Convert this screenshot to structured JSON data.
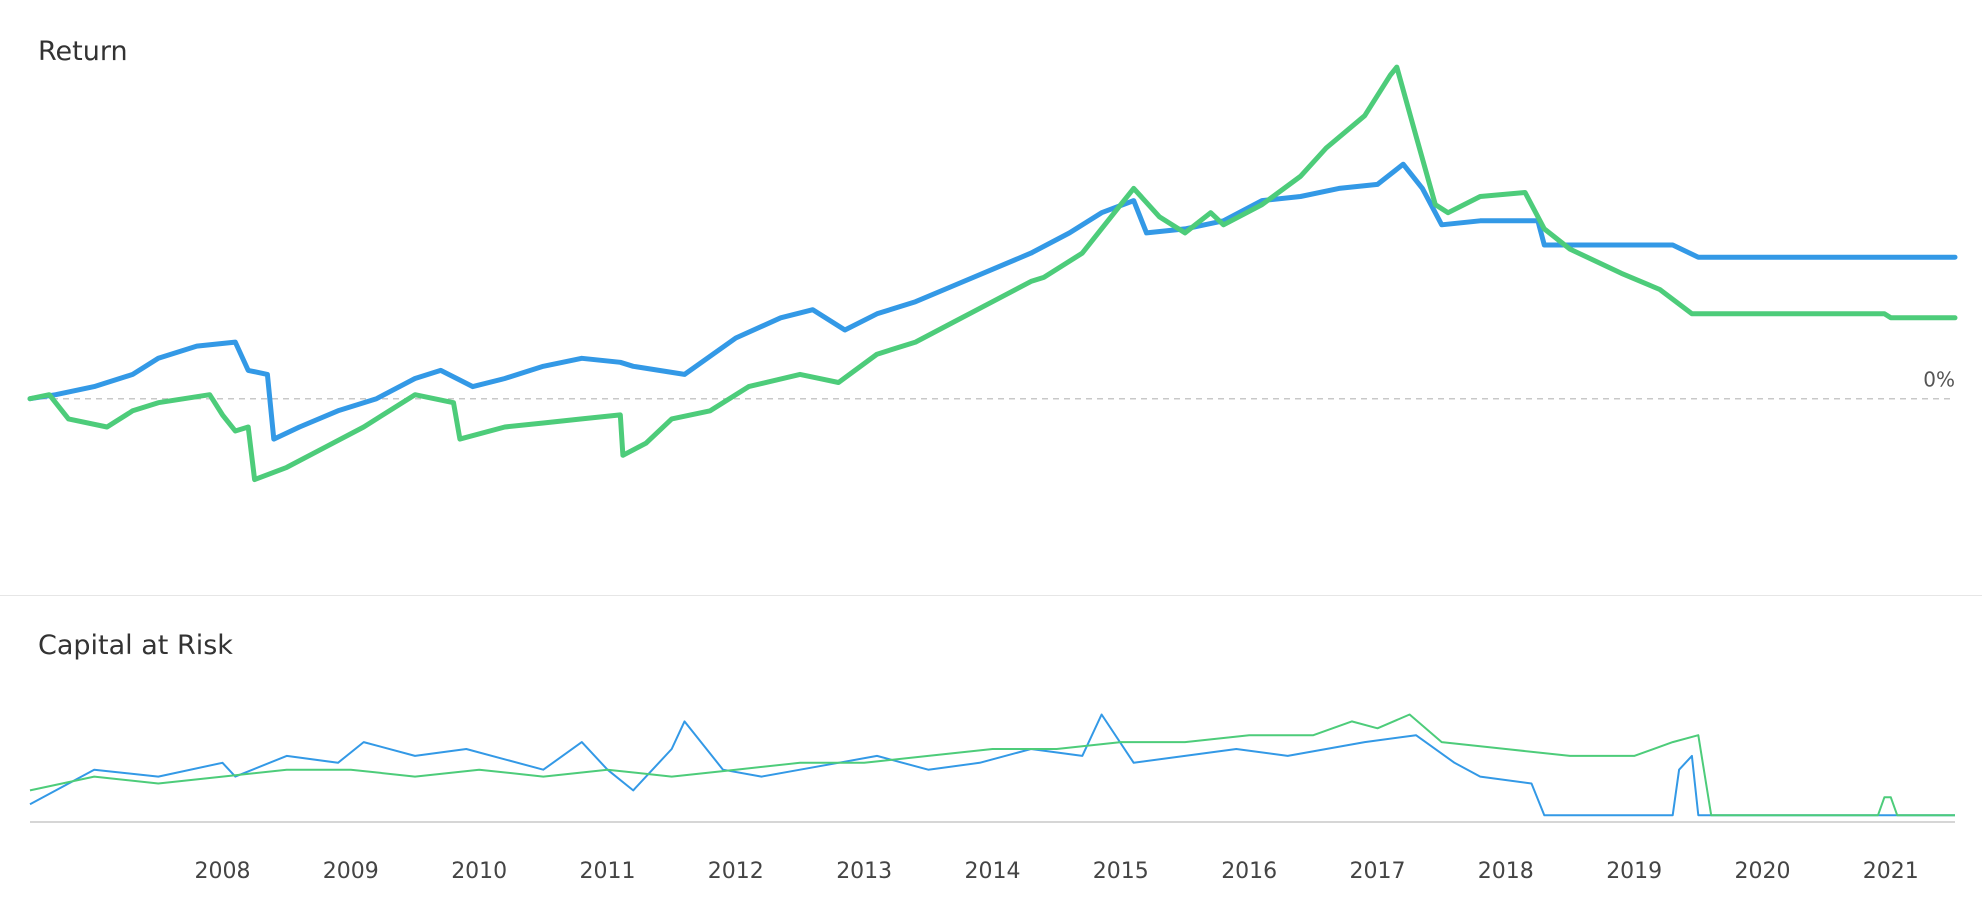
{
  "panels": {
    "return_title": "Return",
    "risk_title": "Capital at Risk"
  },
  "colors": {
    "blue": "#3399e6",
    "green": "#4dcc7a",
    "zero_line": "#c8c8c8",
    "axis": "#c8c8c8"
  },
  "chart_data": [
    {
      "type": "line",
      "title": "Return",
      "x_range": [
        2007.0,
        2022.0
      ],
      "ylim": [
        -0.3,
        0.85
      ],
      "zero_label": "0%",
      "grid": false,
      "legend": "none",
      "series": [
        {
          "color": "#3399e6",
          "x": [
            2007.0,
            2007.2,
            2007.5,
            2007.8,
            2008.0,
            2008.3,
            2008.6,
            2008.7,
            2008.85,
            2008.9,
            2009.1,
            2009.4,
            2009.7,
            2010.0,
            2010.2,
            2010.45,
            2010.7,
            2011.0,
            2011.3,
            2011.6,
            2011.7,
            2012.1,
            2012.5,
            2012.85,
            2013.1,
            2013.35,
            2013.6,
            2013.9,
            2014.2,
            2014.5,
            2014.8,
            2015.1,
            2015.35,
            2015.6,
            2015.7,
            2016.0,
            2016.3,
            2016.6,
            2016.9,
            2017.2,
            2017.5,
            2017.7,
            2017.85,
            2018.0,
            2018.3,
            2018.75,
            2018.8,
            2019.8,
            2020.0,
            2022.0
          ],
          "y": [
            0.0,
            0.01,
            0.03,
            0.06,
            0.1,
            0.13,
            0.14,
            0.07,
            0.06,
            -0.1,
            -0.07,
            -0.03,
            0.0,
            0.05,
            0.07,
            0.03,
            0.05,
            0.08,
            0.1,
            0.09,
            0.08,
            0.06,
            0.15,
            0.2,
            0.22,
            0.17,
            0.21,
            0.24,
            0.28,
            0.32,
            0.36,
            0.41,
            0.46,
            0.49,
            0.41,
            0.42,
            0.44,
            0.49,
            0.5,
            0.52,
            0.53,
            0.58,
            0.52,
            0.43,
            0.44,
            0.44,
            0.38,
            0.38,
            0.35,
            0.35
          ]
        },
        {
          "color": "#4dcc7a",
          "x": [
            2007.0,
            2007.15,
            2007.3,
            2007.6,
            2007.8,
            2008.0,
            2008.2,
            2008.4,
            2008.5,
            2008.6,
            2008.7,
            2008.75,
            2009.0,
            2009.3,
            2009.6,
            2010.0,
            2010.3,
            2010.35,
            2010.7,
            2011.0,
            2011.3,
            2011.6,
            2011.62,
            2011.8,
            2012.0,
            2012.3,
            2012.6,
            2013.0,
            2013.3,
            2013.6,
            2013.9,
            2014.2,
            2014.5,
            2014.8,
            2014.9,
            2015.2,
            2015.5,
            2015.6,
            2015.8,
            2016.0,
            2016.2,
            2016.3,
            2016.6,
            2016.9,
            2017.1,
            2017.4,
            2017.6,
            2017.65,
            2017.8,
            2017.95,
            2018.05,
            2018.3,
            2018.65,
            2018.8,
            2019.0,
            2019.4,
            2019.7,
            2019.95,
            2020.05,
            2020.5,
            2021.0,
            2021.45,
            2021.5,
            2022.0
          ],
          "y": [
            0.0,
            0.01,
            -0.05,
            -0.07,
            -0.03,
            -0.01,
            0.0,
            0.01,
            -0.04,
            -0.08,
            -0.07,
            -0.2,
            -0.17,
            -0.12,
            -0.07,
            0.01,
            -0.01,
            -0.1,
            -0.07,
            -0.06,
            -0.05,
            -0.04,
            -0.14,
            -0.11,
            -0.05,
            -0.03,
            0.03,
            0.06,
            0.04,
            0.11,
            0.14,
            0.19,
            0.24,
            0.29,
            0.3,
            0.36,
            0.48,
            0.52,
            0.45,
            0.41,
            0.46,
            0.43,
            0.48,
            0.55,
            0.62,
            0.7,
            0.8,
            0.82,
            0.65,
            0.48,
            0.46,
            0.5,
            0.51,
            0.42,
            0.37,
            0.31,
            0.27,
            0.21,
            0.21,
            0.21,
            0.21,
            0.21,
            0.2,
            0.2
          ]
        }
      ]
    },
    {
      "type": "line",
      "title": "Capital at Risk",
      "x_range": [
        2007.0,
        2022.0
      ],
      "ylim": [
        0,
        1
      ],
      "grid": false,
      "legend": "none",
      "xticks": [
        "2008",
        "2009",
        "2010",
        "2011",
        "2012",
        "2013",
        "2014",
        "2015",
        "2016",
        "2017",
        "2018",
        "2019",
        "2020",
        "2021"
      ],
      "series": [
        {
          "color": "#3399e6",
          "x": [
            2007.0,
            2007.5,
            2008.0,
            2008.5,
            2008.6,
            2009.0,
            2009.4,
            2009.6,
            2010.0,
            2010.4,
            2011.0,
            2011.3,
            2011.5,
            2011.7,
            2012.0,
            2012.1,
            2012.4,
            2012.7,
            2013.0,
            2013.3,
            2013.6,
            2014.0,
            2014.4,
            2014.8,
            2015.2,
            2015.35,
            2015.6,
            2016.0,
            2016.4,
            2016.8,
            2017.1,
            2017.4,
            2017.8,
            2018.1,
            2018.3,
            2018.7,
            2018.8,
            2019.0,
            2019.5,
            2019.8,
            2019.85,
            2019.95,
            2020.0,
            2022.0
          ],
          "y": [
            0.1,
            0.35,
            0.3,
            0.4,
            0.3,
            0.45,
            0.4,
            0.55,
            0.45,
            0.5,
            0.35,
            0.55,
            0.35,
            0.2,
            0.5,
            0.7,
            0.35,
            0.3,
            0.35,
            0.4,
            0.45,
            0.35,
            0.4,
            0.5,
            0.45,
            0.75,
            0.4,
            0.45,
            0.5,
            0.45,
            0.5,
            0.55,
            0.6,
            0.4,
            0.3,
            0.25,
            0.02,
            0.02,
            0.02,
            0.02,
            0.35,
            0.45,
            0.02,
            0.02
          ]
        },
        {
          "color": "#4dcc7a",
          "x": [
            2007.0,
            2007.5,
            2008.0,
            2008.5,
            2009.0,
            2009.5,
            2010.0,
            2010.5,
            2011.0,
            2011.5,
            2012.0,
            2012.5,
            2013.0,
            2013.5,
            2014.0,
            2014.5,
            2015.0,
            2015.5,
            2016.0,
            2016.5,
            2017.0,
            2017.3,
            2017.5,
            2017.75,
            2018.0,
            2018.5,
            2019.0,
            2019.5,
            2019.8,
            2020.0,
            2020.1,
            2021.0,
            2021.4,
            2021.45,
            2021.5,
            2021.55,
            2022.0
          ],
          "y": [
            0.2,
            0.3,
            0.25,
            0.3,
            0.35,
            0.35,
            0.3,
            0.35,
            0.3,
            0.35,
            0.3,
            0.35,
            0.4,
            0.4,
            0.45,
            0.5,
            0.5,
            0.55,
            0.55,
            0.6,
            0.6,
            0.7,
            0.65,
            0.75,
            0.55,
            0.5,
            0.45,
            0.45,
            0.55,
            0.6,
            0.02,
            0.02,
            0.02,
            0.15,
            0.15,
            0.02,
            0.02
          ]
        }
      ]
    }
  ]
}
